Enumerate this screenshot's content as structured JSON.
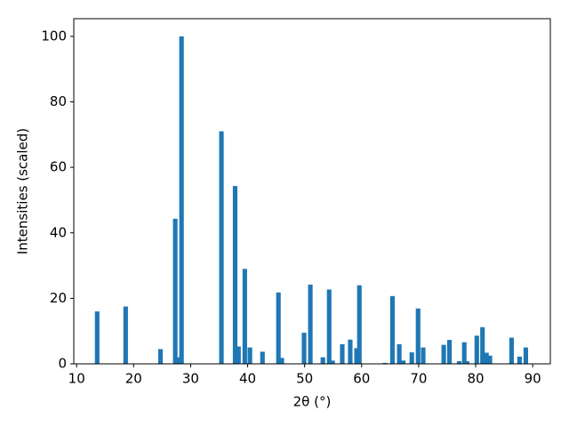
{
  "chart_data": {
    "type": "bar",
    "xlabel": "2θ (°)",
    "ylabel": "Intensities (scaled)",
    "color": "#1f77b4",
    "x": [
      13.6,
      18.6,
      24.7,
      27.3,
      27.9,
      28.4,
      35.4,
      37.8,
      38.4,
      39.5,
      40.4,
      42.6,
      45.4,
      46.0,
      49.9,
      51.0,
      53.2,
      54.3,
      54.9,
      56.6,
      58.0,
      59.1,
      59.6,
      64.1,
      65.4,
      66.6,
      67.3,
      68.8,
      69.9,
      70.8,
      74.4,
      75.4,
      77.1,
      78.0,
      78.5,
      80.2,
      81.2,
      81.9,
      82.5,
      86.3,
      87.7,
      88.8
    ],
    "values": [
      16,
      17.5,
      4.5,
      44.3,
      2,
      100,
      71,
      54.3,
      5.3,
      29,
      5,
      3.7,
      21.8,
      1.8,
      9.5,
      24.2,
      2,
      22.7,
      1,
      6,
      7.4,
      4.8,
      24,
      0.3,
      20.7,
      6,
      1,
      3.5,
      16.9,
      5,
      5.8,
      7.3,
      0.8,
      6.6,
      0.8,
      8.6,
      11.2,
      3.4,
      2.5,
      8,
      2.2,
      5
    ],
    "xlim": [
      9.5,
      93.1
    ],
    "ylim": [
      0,
      105.4
    ],
    "xticks": [
      10,
      20,
      30,
      40,
      50,
      60,
      70,
      80,
      90
    ],
    "yticks": [
      0,
      20,
      40,
      60,
      80,
      100
    ]
  }
}
